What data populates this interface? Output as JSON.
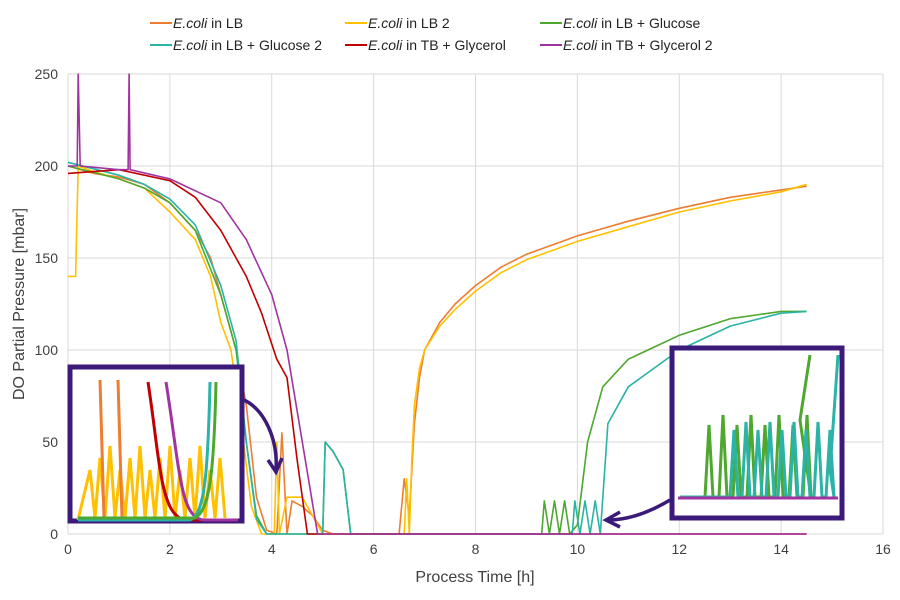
{
  "chart_data": {
    "type": "line",
    "title": "",
    "xlabel": "Process Time [h]",
    "ylabel": "DO Partial Pressure [mbar]",
    "xlim": [
      0,
      16
    ],
    "ylim": [
      0,
      250
    ],
    "xticks": [
      "0",
      "2",
      "4",
      "6",
      "8",
      "10",
      "12",
      "14",
      "16"
    ],
    "yticks": [
      "0",
      "50",
      "100",
      "150",
      "200",
      "250"
    ],
    "grid": true,
    "legend_position": "top",
    "series": [
      {
        "name": "E.coli in LB",
        "italic": "E.coli",
        "rest": " in LB",
        "color": "#ED7D31",
        "points": [
          [
            0,
            200
          ],
          [
            0.5,
            196
          ],
          [
            1,
            194
          ],
          [
            1.5,
            190
          ],
          [
            2,
            180
          ],
          [
            2.5,
            165
          ],
          [
            2.8,
            150
          ],
          [
            3.1,
            120
          ],
          [
            3.3,
            100
          ],
          [
            3.5,
            70
          ],
          [
            3.7,
            20
          ],
          [
            3.9,
            2
          ],
          [
            4.1,
            0
          ],
          [
            4.2,
            55
          ],
          [
            4.3,
            0
          ],
          [
            4.4,
            18
          ],
          [
            4.6,
            15
          ],
          [
            4.8,
            10
          ],
          [
            5,
            2
          ],
          [
            5.2,
            0
          ],
          [
            6.5,
            0
          ],
          [
            6.6,
            30
          ],
          [
            6.7,
            10
          ],
          [
            6.8,
            60
          ],
          [
            6.9,
            85
          ],
          [
            7,
            100
          ],
          [
            7.3,
            115
          ],
          [
            7.6,
            125
          ],
          [
            8,
            135
          ],
          [
            8.5,
            145
          ],
          [
            9,
            152
          ],
          [
            9.5,
            157
          ],
          [
            10,
            162
          ],
          [
            11,
            170
          ],
          [
            12,
            177
          ],
          [
            13,
            183
          ],
          [
            14,
            187
          ],
          [
            14.5,
            189
          ]
        ]
      },
      {
        "name": "E.coli in LB 2",
        "italic": "E.coli",
        "rest": " in LB 2",
        "color": "#FFC000",
        "points": [
          [
            0,
            140
          ],
          [
            0.15,
            140
          ],
          [
            0.2,
            200
          ],
          [
            0.5,
            197
          ],
          [
            1,
            193
          ],
          [
            1.5,
            188
          ],
          [
            2,
            175
          ],
          [
            2.5,
            160
          ],
          [
            2.8,
            140
          ],
          [
            3,
            115
          ],
          [
            3.2,
            100
          ],
          [
            3.4,
            60
          ],
          [
            3.6,
            15
          ],
          [
            3.8,
            0
          ],
          [
            4.05,
            0
          ],
          [
            4.1,
            50
          ],
          [
            4.15,
            0
          ],
          [
            4.3,
            20
          ],
          [
            4.6,
            20
          ],
          [
            4.8,
            10
          ],
          [
            5,
            0
          ],
          [
            6.6,
            0
          ],
          [
            6.65,
            30
          ],
          [
            6.7,
            0
          ],
          [
            6.75,
            40
          ],
          [
            6.8,
            70
          ],
          [
            6.9,
            90
          ],
          [
            7,
            100
          ],
          [
            7.3,
            113
          ],
          [
            7.6,
            122
          ],
          [
            8,
            132
          ],
          [
            8.5,
            142
          ],
          [
            9,
            149
          ],
          [
            9.5,
            154
          ],
          [
            10,
            159
          ],
          [
            11,
            167
          ],
          [
            12,
            175
          ],
          [
            13,
            181
          ],
          [
            14,
            186
          ],
          [
            14.5,
            190
          ]
        ]
      },
      {
        "name": "E.coli in LB + Glucose",
        "italic": "E.coli",
        "rest": " in LB + Glucose",
        "color": "#4EA72E",
        "points": [
          [
            0,
            200
          ],
          [
            1,
            193
          ],
          [
            1.5,
            188
          ],
          [
            2,
            180
          ],
          [
            2.5,
            165
          ],
          [
            3,
            130
          ],
          [
            3.3,
            100
          ],
          [
            3.5,
            50
          ],
          [
            3.7,
            10
          ],
          [
            3.9,
            0
          ],
          [
            5,
            0
          ],
          [
            5.05,
            50
          ],
          [
            5.2,
            45
          ],
          [
            5.4,
            35
          ],
          [
            5.55,
            0
          ],
          [
            9.3,
            0
          ],
          [
            9.35,
            18
          ],
          [
            9.45,
            0
          ],
          [
            9.55,
            18
          ],
          [
            9.65,
            0
          ],
          [
            9.75,
            18
          ],
          [
            9.85,
            0
          ],
          [
            10,
            5
          ],
          [
            10.2,
            50
          ],
          [
            10.5,
            80
          ],
          [
            11,
            95
          ],
          [
            12,
            108
          ],
          [
            13,
            117
          ],
          [
            14,
            121
          ],
          [
            14.5,
            121
          ]
        ]
      },
      {
        "name": "E.coli in LB + Glucose 2",
        "italic": "E.coli",
        "rest": " in LB + Glucose 2",
        "color": "#2AB3A6",
        "points": [
          [
            0,
            202
          ],
          [
            1,
            195
          ],
          [
            1.5,
            190
          ],
          [
            2,
            182
          ],
          [
            2.5,
            168
          ],
          [
            3,
            135
          ],
          [
            3.3,
            105
          ],
          [
            3.5,
            50
          ],
          [
            3.7,
            8
          ],
          [
            3.9,
            0
          ],
          [
            5,
            0
          ],
          [
            5.05,
            50
          ],
          [
            5.2,
            45
          ],
          [
            5.4,
            35
          ],
          [
            5.55,
            0
          ],
          [
            9.9,
            0
          ],
          [
            9.95,
            18
          ],
          [
            10.05,
            0
          ],
          [
            10.15,
            18
          ],
          [
            10.25,
            0
          ],
          [
            10.35,
            18
          ],
          [
            10.45,
            0
          ],
          [
            10.6,
            60
          ],
          [
            11,
            80
          ],
          [
            12,
            100
          ],
          [
            13,
            113
          ],
          [
            14,
            120
          ],
          [
            14.5,
            121
          ]
        ]
      },
      {
        "name": "E.coli in TB + Glycerol",
        "italic": "E.coli",
        "rest": " in TB + Glycerol",
        "color": "#C00000",
        "points": [
          [
            0,
            196
          ],
          [
            1,
            198
          ],
          [
            2,
            192
          ],
          [
            2.5,
            183
          ],
          [
            3,
            165
          ],
          [
            3.5,
            140
          ],
          [
            3.8,
            120
          ],
          [
            4.1,
            95
          ],
          [
            4.3,
            85
          ],
          [
            4.5,
            40
          ],
          [
            4.7,
            0
          ],
          [
            14.5,
            0
          ]
        ]
      },
      {
        "name": "E.coli in TB + Glycerol 2",
        "italic": "E.coli",
        "rest": " in TB + Glycerol 2",
        "color": "#A033A0",
        "points": [
          [
            0,
            200
          ],
          [
            0.18,
            200
          ],
          [
            0.2,
            250
          ],
          [
            0.24,
            200
          ],
          [
            1,
            198
          ],
          [
            1.18,
            198
          ],
          [
            1.2,
            250
          ],
          [
            1.22,
            198
          ],
          [
            2,
            193
          ],
          [
            3,
            180
          ],
          [
            3.5,
            160
          ],
          [
            4,
            130
          ],
          [
            4.3,
            100
          ],
          [
            4.6,
            50
          ],
          [
            4.9,
            0
          ],
          [
            14.5,
            0
          ]
        ]
      }
    ]
  }
}
